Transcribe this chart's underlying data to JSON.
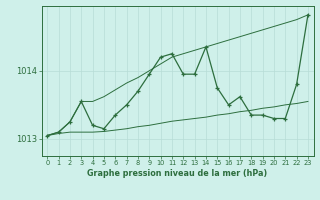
{
  "title": "Graphe pression niveau de la mer (hPa)",
  "bg_color": "#cff0ea",
  "grid_color": "#b8ddd6",
  "line_color": "#2d6e3e",
  "x_min": 0,
  "x_max": 23,
  "y_min": 1012.75,
  "y_max": 1014.95,
  "yticks": [
    1013,
    1014
  ],
  "xticks": [
    0,
    1,
    2,
    3,
    4,
    5,
    6,
    7,
    8,
    9,
    10,
    11,
    12,
    13,
    14,
    15,
    16,
    17,
    18,
    19,
    20,
    21,
    22,
    23
  ],
  "main_line": [
    1013.05,
    1013.1,
    1013.25,
    1013.55,
    1013.2,
    1013.15,
    1013.35,
    1013.5,
    1013.7,
    1013.95,
    1014.2,
    1014.25,
    1013.95,
    1013.95,
    1014.35,
    1013.75,
    1013.5,
    1013.62,
    1013.35,
    1013.35,
    1013.3,
    1013.3,
    1013.8,
    1014.82
  ],
  "upper_envelope": [
    1013.05,
    1013.1,
    1013.25,
    1013.55,
    1013.55,
    1013.62,
    1013.72,
    1013.82,
    1013.9,
    1014.0,
    1014.1,
    1014.2,
    1014.25,
    1014.3,
    1014.35,
    1014.4,
    1014.45,
    1014.5,
    1014.55,
    1014.6,
    1014.65,
    1014.7,
    1014.75,
    1014.82
  ],
  "lower_envelope": [
    1013.05,
    1013.08,
    1013.1,
    1013.1,
    1013.1,
    1013.11,
    1013.13,
    1013.15,
    1013.18,
    1013.2,
    1013.23,
    1013.26,
    1013.28,
    1013.3,
    1013.32,
    1013.35,
    1013.37,
    1013.4,
    1013.42,
    1013.45,
    1013.47,
    1013.5,
    1013.52,
    1013.55
  ]
}
